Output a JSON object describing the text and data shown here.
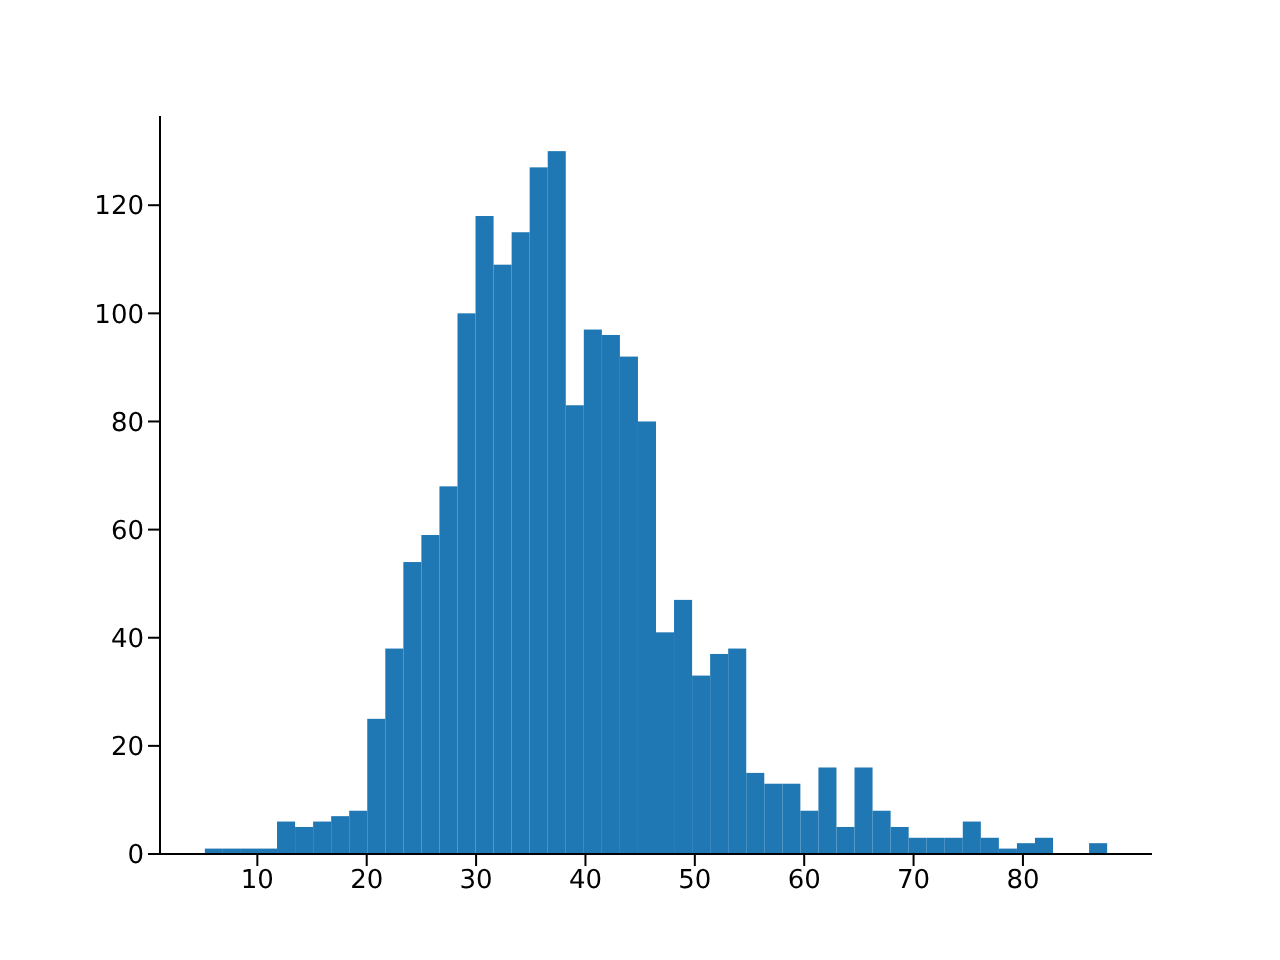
{
  "chart_data": {
    "type": "histogram",
    "bins": [
      5.2,
      6.85,
      8.5,
      10.15,
      11.8,
      13.45,
      15.1,
      16.75,
      18.4,
      20.05,
      21.7,
      23.35,
      25.0,
      26.65,
      28.3,
      29.95,
      31.6,
      33.25,
      34.9,
      36.55,
      38.2,
      39.85,
      41.5,
      43.15,
      44.8,
      46.45,
      48.1,
      49.75,
      51.4,
      53.05,
      54.7,
      56.35,
      58.0,
      59.65,
      61.3,
      62.95,
      64.6,
      66.25,
      67.9,
      69.55,
      71.2,
      72.85,
      74.5,
      76.15,
      77.8,
      79.45,
      81.1,
      82.75,
      84.4,
      86.05,
      87.7
    ],
    "values": [
      1,
      1,
      1,
      1,
      6,
      5,
      6,
      7,
      8,
      25,
      38,
      54,
      59,
      68,
      100,
      118,
      109,
      115,
      127,
      130,
      83,
      97,
      96,
      92,
      80,
      41,
      47,
      33,
      37,
      38,
      15,
      13,
      13,
      8,
      16,
      5,
      16,
      8,
      5,
      3,
      3,
      3,
      6,
      3,
      1,
      2,
      3,
      0,
      0,
      2
    ],
    "color": "#1f77b4",
    "xlim": [
      1.1,
      91.8
    ],
    "xticks": [
      10,
      20,
      30,
      40,
      50,
      60,
      70,
      80
    ],
    "ylim": [
      0,
      136.5
    ],
    "yticks": [
      0,
      20,
      40,
      60,
      80,
      100,
      120
    ]
  }
}
